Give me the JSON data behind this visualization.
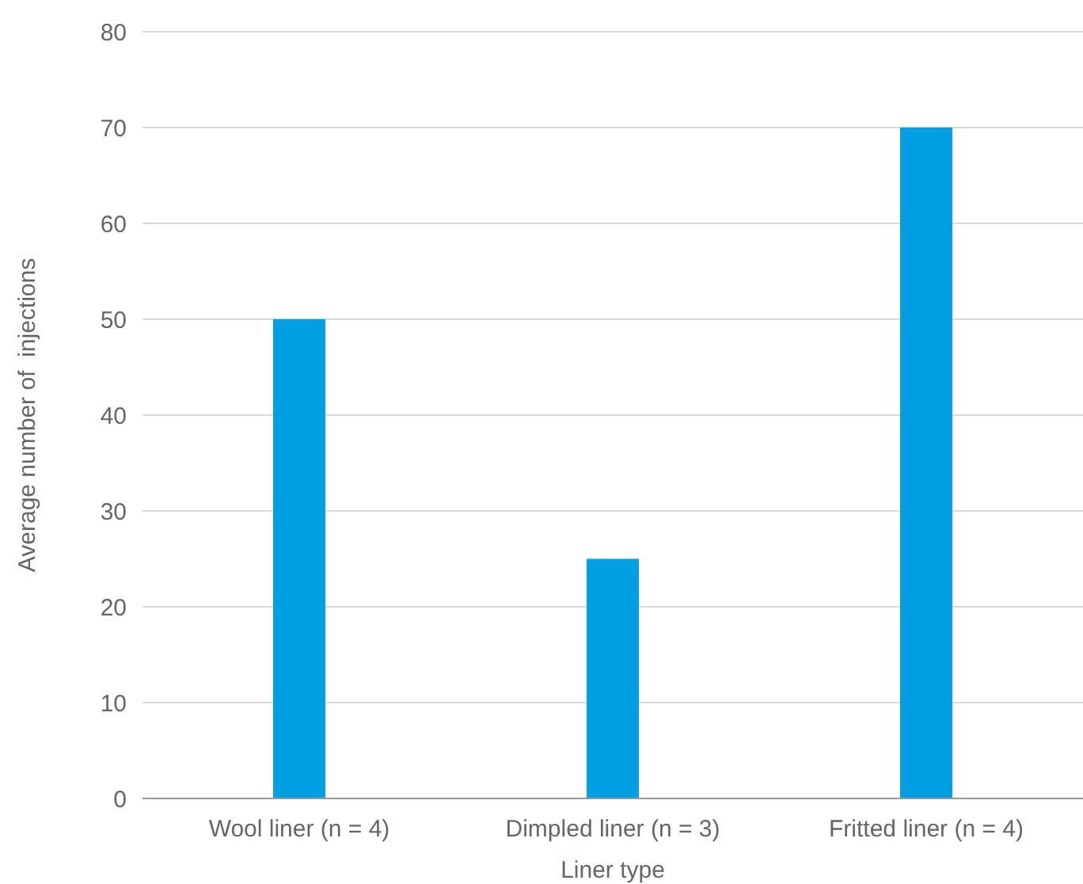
{
  "chart_data": {
    "type": "bar",
    "xlabel": "Liner type",
    "ylabel": "Average number of  injections",
    "categories": [
      "Wool liner (n = 4)",
      "Dimpled liner (n = 3)",
      "Fritted liner (n = 4)"
    ],
    "values": [
      50,
      25,
      70
    ],
    "color": "#009fe3",
    "ylim": [
      0,
      80
    ],
    "yticks": [
      0,
      10,
      20,
      30,
      40,
      50,
      60,
      70,
      80
    ],
    "grid": "y"
  }
}
